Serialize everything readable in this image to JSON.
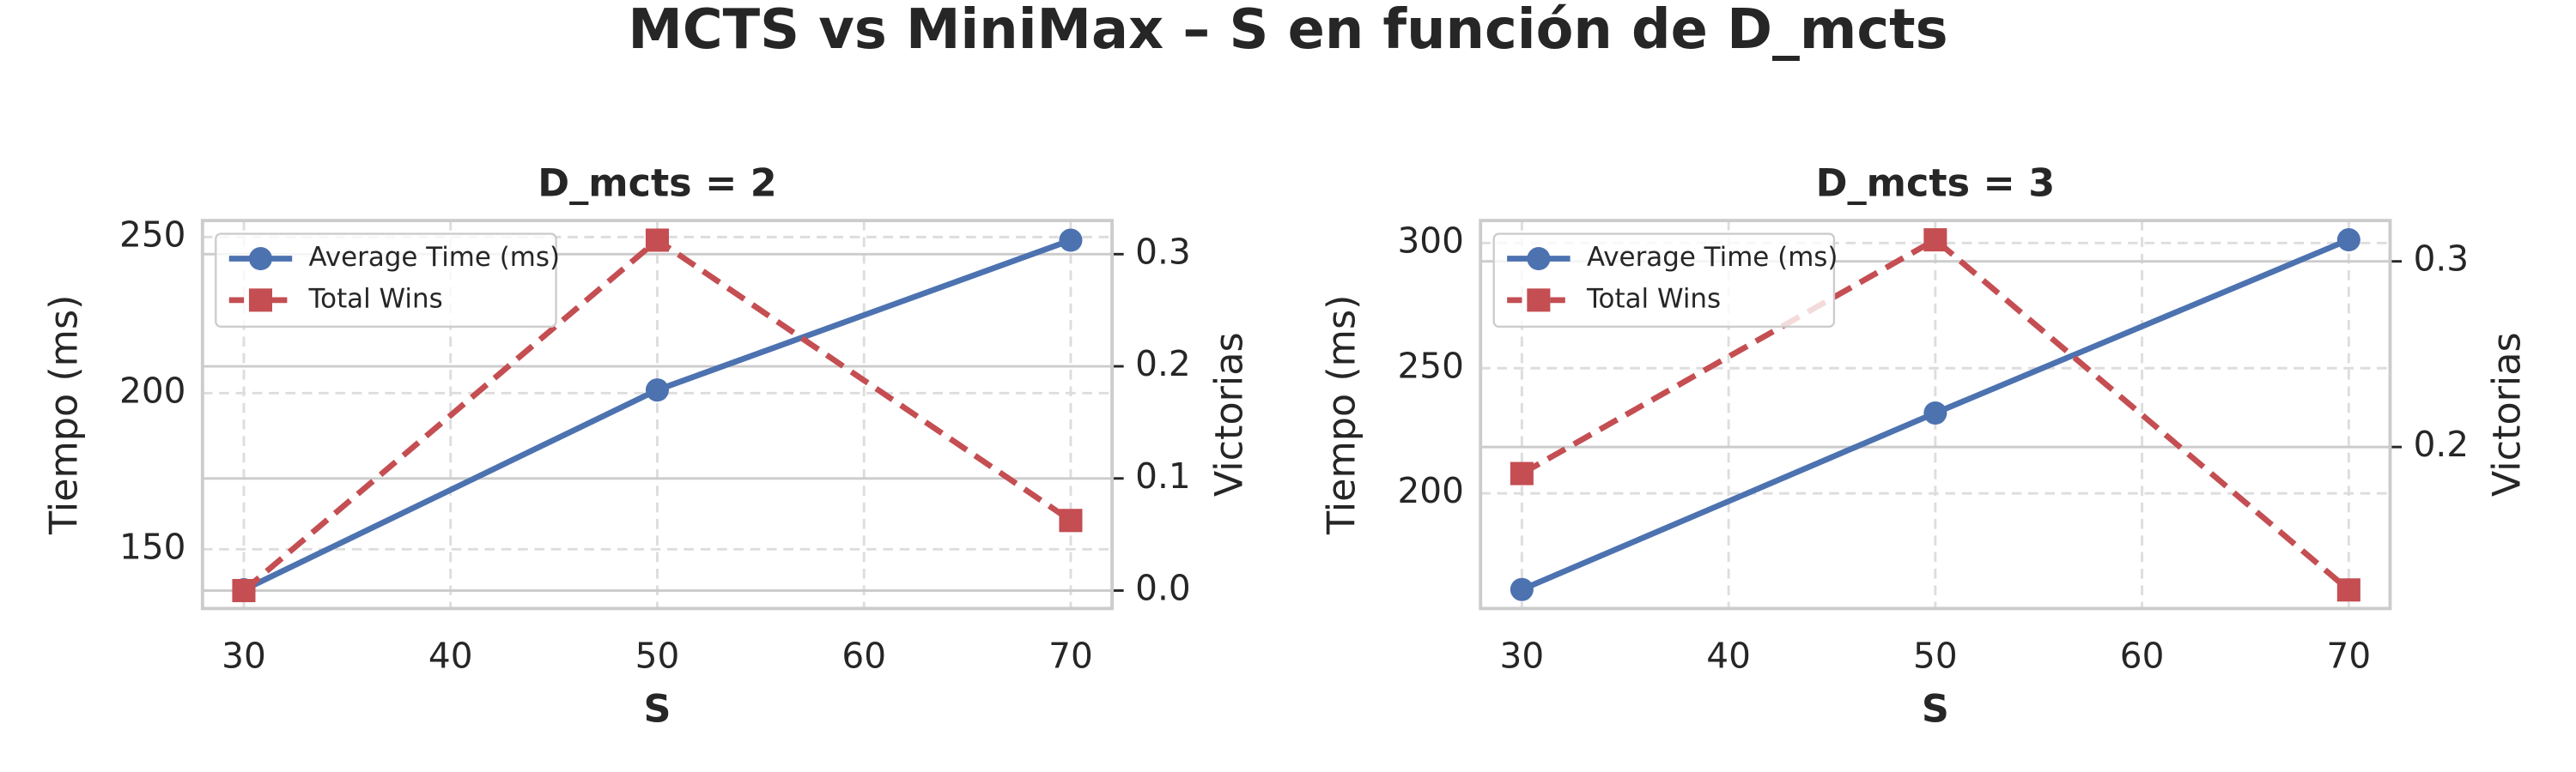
{
  "title": "MCTS vs MiniMax – S en función de D_mcts",
  "chart_data": [
    {
      "type": "line",
      "title": "D_mcts = 2",
      "xlabel": "S",
      "ylabel": "Tiempo (ms)",
      "y2label": "Victorias",
      "x": [
        30,
        50,
        70
      ],
      "xlim": [
        28,
        72
      ],
      "xticks": [
        30,
        40,
        50,
        60,
        70
      ],
      "ylim": [
        131,
        255.3
      ],
      "yticks": [
        150,
        200,
        250
      ],
      "y2lim": [
        -0.016,
        0.33
      ],
      "y2ticks": [
        {
          "value": 0,
          "label": "0.0"
        },
        0.1,
        0.2,
        0.3
      ],
      "grid": true,
      "legend": "upper left",
      "series": [
        {
          "name": "Average Time (ms)",
          "color": "#4c72b0",
          "marker": "circle",
          "linestyle": "solid",
          "values": [
            137,
            201,
            249
          ]
        },
        {
          "name": "Total Wins",
          "color": "#c44e52",
          "marker": "square",
          "linestyle": "dashed",
          "axis": "y2",
          "values": [
            0,
            0.3125,
            0.0625
          ]
        }
      ]
    },
    {
      "type": "line",
      "title": "D_mcts = 3",
      "xlabel": "S",
      "ylabel": "Tiempo (ms)",
      "y2label": "Victorias",
      "x": [
        30,
        50,
        70
      ],
      "xlim": [
        28,
        72
      ],
      "xticks": [
        30,
        40,
        50,
        60,
        70
      ],
      "ylim": [
        154,
        309
      ],
      "yticks": [
        200,
        250,
        300
      ],
      "y2lim": [
        0.113,
        0.322
      ],
      "y2ticks": [
        0.2,
        0.3
      ],
      "grid": true,
      "legend": "upper left",
      "series": [
        {
          "name": "Average Time (ms)",
          "color": "#4c72b0",
          "marker": "circle",
          "linestyle": "solid",
          "values": [
            161.6,
            232.1,
            301.3
          ]
        },
        {
          "name": "Total Wins",
          "color": "#c44e52",
          "marker": "square",
          "linestyle": "dashed",
          "axis": "y2",
          "values": [
            0.1857,
            0.3116,
            0.123
          ]
        }
      ]
    }
  ]
}
